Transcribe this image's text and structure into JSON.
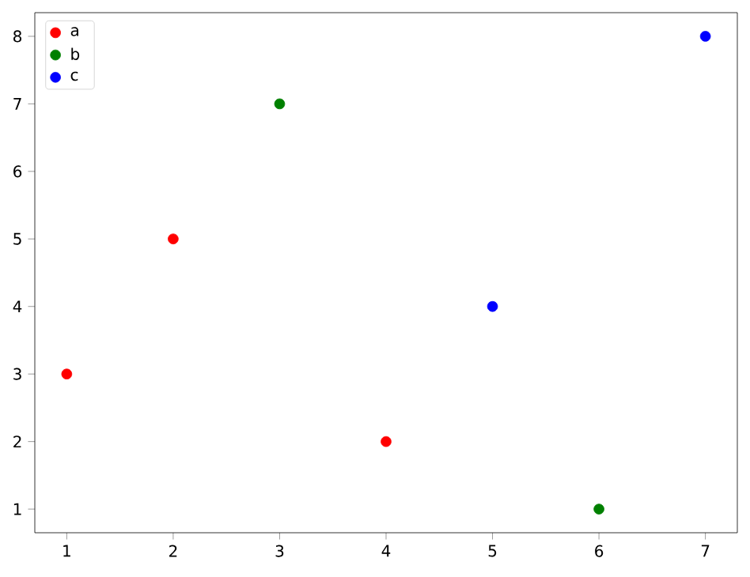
{
  "chart_data": {
    "type": "scatter",
    "xlim": [
      0.7,
      7.3
    ],
    "ylim": [
      0.65,
      8.35
    ],
    "xticks": [
      1,
      2,
      3,
      4,
      5,
      6,
      7
    ],
    "yticks": [
      1,
      2,
      3,
      4,
      5,
      6,
      7,
      8
    ],
    "legend": "top left",
    "series": [
      {
        "name": "a",
        "color": "#ff0000",
        "x": [
          1,
          2,
          4
        ],
        "values": [
          3,
          5,
          2
        ]
      },
      {
        "name": "b",
        "color": "#008000",
        "x": [
          3,
          6
        ],
        "values": [
          7,
          1
        ]
      },
      {
        "name": "c",
        "color": "#0000ff",
        "x": [
          5,
          7
        ],
        "values": [
          4,
          8
        ]
      }
    ]
  }
}
